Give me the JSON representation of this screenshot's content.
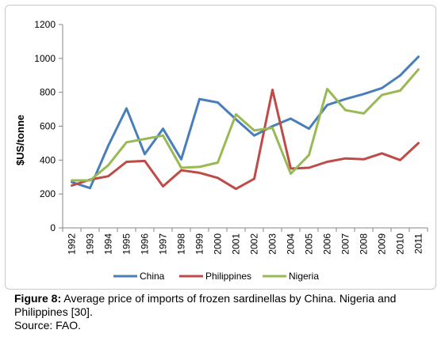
{
  "chart_data": {
    "type": "line",
    "x": [
      "1992",
      "1993",
      "1994",
      "1995",
      "1996",
      "1997",
      "1998",
      "1999",
      "2000",
      "2001",
      "2002",
      "2003",
      "2004",
      "2005",
      "2006",
      "2007",
      "2008",
      "2009",
      "2010",
      "2011"
    ],
    "series": [
      {
        "name": "China",
        "color": "#4a7ebb",
        "values": [
          270,
          235,
          485,
          705,
          435,
          585,
          405,
          760,
          740,
          640,
          545,
          600,
          645,
          585,
          725,
          760,
          790,
          825,
          900,
          1010
        ]
      },
      {
        "name": "Philippines",
        "color": "#be4b48",
        "values": [
          250,
          285,
          305,
          390,
          395,
          245,
          340,
          325,
          295,
          230,
          290,
          815,
          350,
          355,
          390,
          410,
          405,
          440,
          400,
          500
        ]
      },
      {
        "name": "Nigeria",
        "color": "#98b954",
        "values": [
          280,
          280,
          370,
          505,
          525,
          545,
          355,
          360,
          385,
          670,
          575,
          590,
          320,
          430,
          820,
          695,
          675,
          785,
          810,
          935
        ]
      }
    ],
    "ylabel": "$US/tonne",
    "ylim": [
      0,
      1200
    ],
    "yticks": [
      0,
      200,
      400,
      600,
      800,
      1000,
      1200
    ],
    "legend": "bottom",
    "grid": false
  },
  "caption": {
    "label": "Figure 8:",
    "text": " Average price of imports of frozen sardinellas by China. Nigeria and Philippines [30].",
    "source": "Source: FAO."
  }
}
